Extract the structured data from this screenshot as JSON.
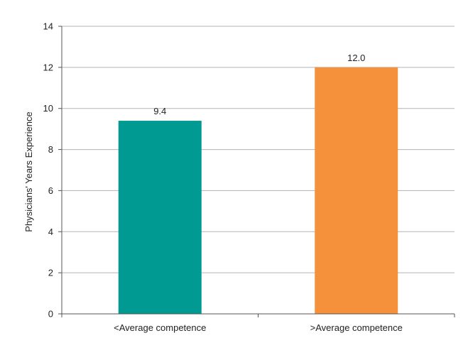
{
  "chart_data": {
    "type": "bar",
    "title": "",
    "xlabel": "",
    "ylabel": "Physicians' Years Experience",
    "categories": [
      "<Average competence",
      ">Average competence"
    ],
    "values": [
      9.4,
      12.0
    ],
    "data_labels": [
      "9.4",
      "12.0"
    ],
    "colors": [
      "#009a93",
      "#f5913b"
    ],
    "ylim": [
      0,
      14
    ],
    "yticks": [
      0,
      2,
      4,
      6,
      8,
      10,
      12,
      14
    ],
    "ytick_labels": [
      "0",
      "2",
      "4",
      "6",
      "8",
      "10",
      "12",
      "14"
    ],
    "grid": true,
    "grid_color": "#b3b3b3",
    "axis_color": "#555555",
    "legend": "none"
  }
}
